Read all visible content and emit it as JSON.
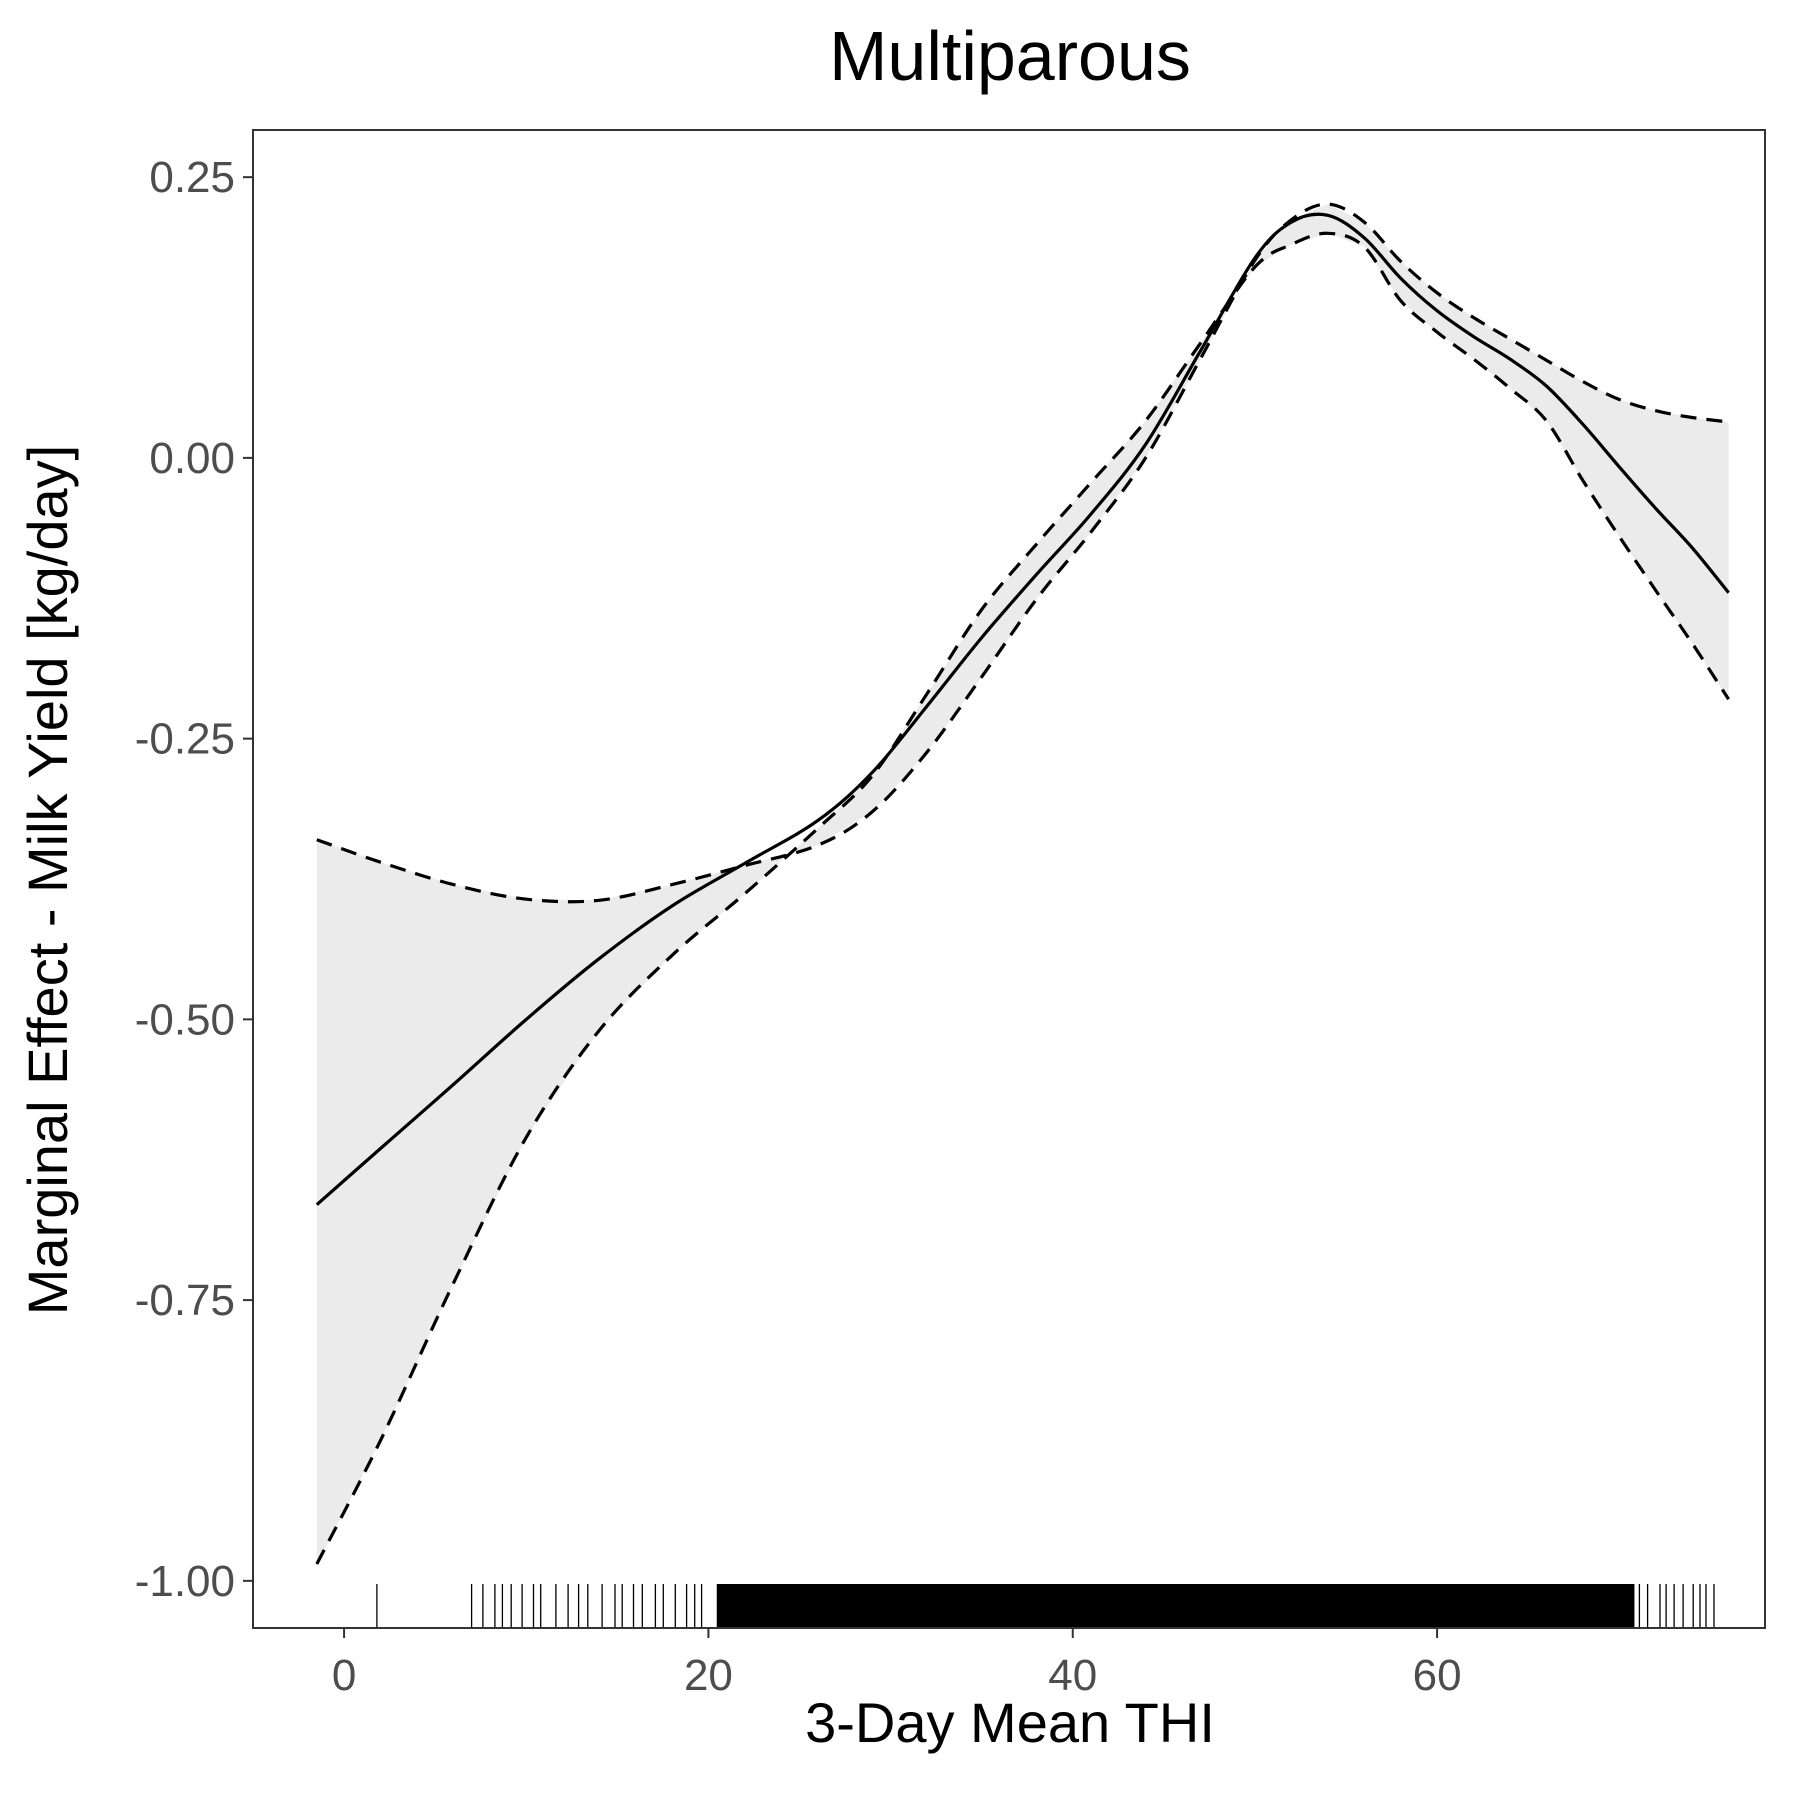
{
  "chart_data": {
    "type": "line",
    "title": "Multiparous",
    "xlabel": "3-Day Mean THI",
    "ylabel": "Marginal Effect - Milk Yield [kg/day]",
    "xlim": [
      -5,
      78
    ],
    "ylim": [
      -1.042,
      0.292
    ],
    "x_ticks": [
      0,
      20,
      40,
      60
    ],
    "x_tick_labels": [
      "0",
      "20",
      "40",
      "60"
    ],
    "y_ticks": [
      0.25,
      0.0,
      -0.25,
      -0.5,
      -0.75,
      -1.0
    ],
    "y_tick_labels": [
      "0.25",
      "0.00",
      "-0.25",
      "-0.50",
      "-0.75",
      "-1.00"
    ],
    "grid": false,
    "legend": "none",
    "ribbon_color": "#ebebeb",
    "line_color": "#000000",
    "series": [
      {
        "style": "solid",
        "x": [
          -1.5,
          2,
          6,
          10,
          14,
          18,
          22,
          26,
          29,
          32,
          35,
          38,
          41,
          44,
          47,
          50,
          52,
          54,
          56,
          58,
          60,
          62,
          64,
          66,
          68,
          70,
          72,
          74,
          76
        ],
        "y": [
          -0.665,
          -0.615,
          -0.558,
          -0.5,
          -0.446,
          -0.399,
          -0.361,
          -0.323,
          -0.28,
          -0.221,
          -0.16,
          -0.104,
          -0.05,
          0.012,
          0.095,
          0.178,
          0.21,
          0.216,
          0.196,
          0.16,
          0.131,
          0.108,
          0.088,
          0.064,
          0.03,
          -0.008,
          -0.045,
          -0.08,
          -0.12
        ]
      },
      {
        "style": "dashed",
        "x": [
          -1.5,
          2,
          6,
          10,
          14,
          18,
          22,
          26,
          29,
          32,
          35,
          38,
          41,
          44,
          47,
          50,
          52,
          54,
          56,
          58,
          60,
          62,
          64,
          66,
          68,
          70,
          72,
          74,
          76
        ],
        "y": [
          -0.34,
          -0.36,
          -0.38,
          -0.393,
          -0.394,
          -0.38,
          -0.363,
          -0.345,
          -0.315,
          -0.262,
          -0.195,
          -0.126,
          -0.066,
          0.0,
          0.088,
          0.176,
          0.212,
          0.226,
          0.21,
          0.175,
          0.147,
          0.125,
          0.106,
          0.087,
          0.068,
          0.052,
          0.042,
          0.036,
          0.032
        ]
      },
      {
        "style": "dashed",
        "x": [
          -1.5,
          2,
          6,
          10,
          14,
          18,
          22,
          26,
          29,
          32,
          35,
          38,
          41,
          44,
          47,
          50,
          52,
          54,
          56,
          58,
          60,
          62,
          64,
          66,
          68,
          70,
          72,
          74,
          76
        ],
        "y": [
          -0.985,
          -0.875,
          -0.735,
          -0.605,
          -0.51,
          -0.443,
          -0.388,
          -0.33,
          -0.283,
          -0.21,
          -0.135,
          -0.077,
          -0.022,
          0.033,
          0.102,
          0.17,
          0.19,
          0.2,
          0.188,
          0.14,
          0.112,
          0.088,
          0.062,
          0.033,
          -0.02,
          -0.07,
          -0.118,
          -0.165,
          -0.215
        ]
      }
    ],
    "rug": {
      "x_min": 1.8,
      "dense_from": 20.5,
      "dense_to": 70.8,
      "x_max": 75.2
    }
  }
}
